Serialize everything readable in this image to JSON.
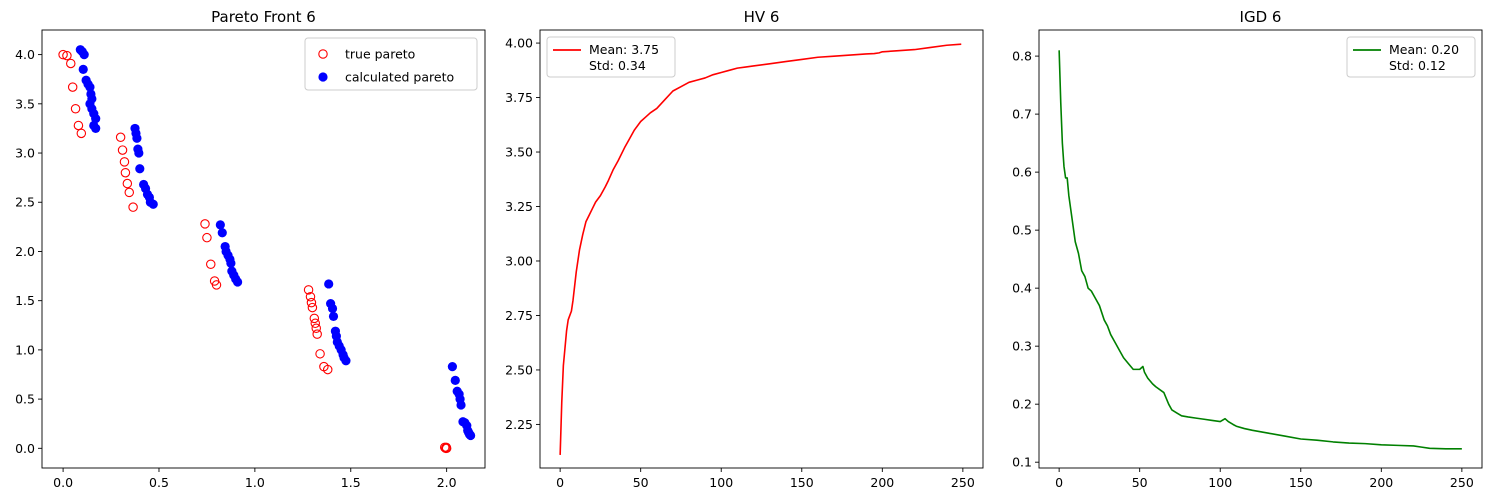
{
  "figure": {
    "colors": {
      "true_pareto": "#ff0000",
      "calculated_pareto": "#0000ff",
      "hv_line": "#ff0000",
      "igd_line": "#008000"
    }
  },
  "chart_data": [
    {
      "type": "scatter",
      "title": "Pareto Front 6",
      "xlabel": "",
      "ylabel": "",
      "xlim": [
        -0.11,
        2.2
      ],
      "ylim": [
        -0.2,
        4.25
      ],
      "xticks": [
        0.0,
        0.5,
        1.0,
        1.5,
        2.0
      ],
      "xtick_labels": [
        "0.0",
        "0.5",
        "1.0",
        "1.5",
        "2.0"
      ],
      "yticks": [
        0.0,
        0.5,
        1.0,
        1.5,
        2.0,
        2.5,
        3.0,
        3.5,
        4.0
      ],
      "ytick_labels": [
        "0.0",
        "0.5",
        "1.0",
        "1.5",
        "2.0",
        "2.5",
        "3.0",
        "3.5",
        "4.0"
      ],
      "legend_position": "top-right",
      "series": [
        {
          "name": "true pareto",
          "marker": "hollow-circle",
          "color": "#ff0000",
          "points": [
            [
              0.0,
              4.0
            ],
            [
              0.02,
              3.99
            ],
            [
              0.04,
              3.91
            ],
            [
              0.05,
              3.67
            ],
            [
              0.065,
              3.45
            ],
            [
              0.08,
              3.28
            ],
            [
              0.095,
              3.2
            ],
            [
              0.3,
              3.16
            ],
            [
              0.31,
              3.03
            ],
            [
              0.32,
              2.91
            ],
            [
              0.325,
              2.8
            ],
            [
              0.335,
              2.69
            ],
            [
              0.345,
              2.6
            ],
            [
              0.365,
              2.45
            ],
            [
              0.74,
              2.28
            ],
            [
              0.75,
              2.14
            ],
            [
              0.77,
              1.87
            ],
            [
              0.79,
              1.7
            ],
            [
              0.8,
              1.66
            ],
            [
              1.28,
              1.61
            ],
            [
              1.29,
              1.54
            ],
            [
              1.295,
              1.48
            ],
            [
              1.3,
              1.43
            ],
            [
              1.31,
              1.32
            ],
            [
              1.315,
              1.27
            ],
            [
              1.32,
              1.22
            ],
            [
              1.325,
              1.16
            ],
            [
              1.34,
              0.96
            ],
            [
              1.36,
              0.83
            ],
            [
              1.38,
              0.8
            ],
            [
              1.99,
              0.01
            ],
            [
              1.995,
              0.0
            ],
            [
              2.0,
              0.0
            ],
            [
              1.998,
              0.01
            ]
          ]
        },
        {
          "name": "calculated pareto",
          "marker": "filled-circle",
          "color": "#0000ff",
          "points": [
            [
              0.09,
              4.05
            ],
            [
              0.1,
              4.03
            ],
            [
              0.11,
              4.0
            ],
            [
              0.105,
              3.85
            ],
            [
              0.12,
              3.74
            ],
            [
              0.13,
              3.7
            ],
            [
              0.14,
              3.67
            ],
            [
              0.145,
              3.6
            ],
            [
              0.15,
              3.55
            ],
            [
              0.14,
              3.5
            ],
            [
              0.15,
              3.45
            ],
            [
              0.16,
              3.4
            ],
            [
              0.17,
              3.35
            ],
            [
              0.16,
              3.28
            ],
            [
              0.17,
              3.25
            ],
            [
              0.375,
              3.25
            ],
            [
              0.38,
              3.2
            ],
            [
              0.385,
              3.15
            ],
            [
              0.39,
              3.04
            ],
            [
              0.395,
              3.0
            ],
            [
              0.4,
              2.84
            ],
            [
              0.42,
              2.68
            ],
            [
              0.43,
              2.64
            ],
            [
              0.44,
              2.58
            ],
            [
              0.45,
              2.55
            ],
            [
              0.455,
              2.5
            ],
            [
              0.47,
              2.48
            ],
            [
              0.82,
              2.27
            ],
            [
              0.83,
              2.19
            ],
            [
              0.845,
              2.05
            ],
            [
              0.85,
              2.0
            ],
            [
              0.86,
              1.96
            ],
            [
              0.87,
              1.92
            ],
            [
              0.875,
              1.88
            ],
            [
              0.88,
              1.8
            ],
            [
              0.89,
              1.76
            ],
            [
              0.9,
              1.72
            ],
            [
              0.91,
              1.69
            ],
            [
              1.385,
              1.67
            ],
            [
              1.395,
              1.47
            ],
            [
              1.405,
              1.42
            ],
            [
              1.41,
              1.34
            ],
            [
              1.42,
              1.19
            ],
            [
              1.425,
              1.14
            ],
            [
              1.43,
              1.08
            ],
            [
              1.44,
              1.04
            ],
            [
              1.45,
              1.0
            ],
            [
              1.46,
              0.95
            ],
            [
              1.465,
              0.92
            ],
            [
              1.475,
              0.89
            ],
            [
              2.03,
              0.83
            ],
            [
              2.045,
              0.69
            ],
            [
              2.055,
              0.58
            ],
            [
              2.065,
              0.55
            ],
            [
              2.07,
              0.5
            ],
            [
              2.075,
              0.44
            ],
            [
              2.085,
              0.27
            ],
            [
              2.095,
              0.26
            ],
            [
              2.105,
              0.23
            ],
            [
              2.11,
              0.18
            ],
            [
              2.115,
              0.16
            ],
            [
              2.12,
              0.14
            ],
            [
              2.125,
              0.13
            ]
          ]
        }
      ]
    },
    {
      "type": "line",
      "title": "HV 6",
      "xlabel": "",
      "ylabel": "",
      "xlim": [
        -12.5,
        262.5
      ],
      "ylim": [
        2.05,
        4.06
      ],
      "xticks": [
        0,
        50,
        100,
        150,
        200,
        250
      ],
      "xtick_labels": [
        "0",
        "50",
        "100",
        "150",
        "200",
        "250"
      ],
      "yticks": [
        2.25,
        2.5,
        2.75,
        3.0,
        3.25,
        3.5,
        3.75,
        4.0
      ],
      "ytick_labels": [
        "2.25",
        "2.50",
        "2.75",
        "3.00",
        "3.25",
        "3.50",
        "3.75",
        "4.00"
      ],
      "legend_position": "top-left",
      "series": [
        {
          "name": "Mean: 3.75\nStd: 0.34",
          "legend_lines": [
            "Mean: 3.75",
            "Std: 0.34"
          ],
          "color": "#ff0000",
          "x": [
            0,
            1,
            2,
            3,
            4,
            5,
            6,
            7,
            8,
            10,
            12,
            14,
            16,
            18,
            20,
            22,
            25,
            28,
            30,
            33,
            36,
            40,
            43,
            46,
            50,
            53,
            56,
            60,
            65,
            70,
            75,
            80,
            85,
            90,
            95,
            100,
            105,
            110,
            115,
            120,
            130,
            140,
            150,
            160,
            170,
            180,
            190,
            195,
            198,
            200,
            210,
            220,
            230,
            240,
            249
          ],
          "y": [
            2.11,
            2.35,
            2.52,
            2.6,
            2.68,
            2.73,
            2.75,
            2.77,
            2.82,
            2.95,
            3.05,
            3.12,
            3.18,
            3.21,
            3.24,
            3.27,
            3.3,
            3.34,
            3.37,
            3.42,
            3.46,
            3.52,
            3.56,
            3.6,
            3.64,
            3.66,
            3.68,
            3.7,
            3.74,
            3.78,
            3.8,
            3.82,
            3.83,
            3.84,
            3.855,
            3.865,
            3.875,
            3.885,
            3.89,
            3.895,
            3.905,
            3.915,
            3.925,
            3.935,
            3.94,
            3.945,
            3.95,
            3.952,
            3.955,
            3.96,
            3.965,
            3.97,
            3.98,
            3.99,
            3.995
          ]
        }
      ]
    },
    {
      "type": "line",
      "title": "IGD 6",
      "xlabel": "",
      "ylabel": "",
      "xlim": [
        -12.5,
        262.5
      ],
      "ylim": [
        0.09,
        0.845
      ],
      "xticks": [
        0,
        50,
        100,
        150,
        200,
        250
      ],
      "xtick_labels": [
        "0",
        "50",
        "100",
        "150",
        "200",
        "250"
      ],
      "yticks": [
        0.1,
        0.2,
        0.3,
        0.4,
        0.5,
        0.6,
        0.7,
        0.8
      ],
      "ytick_labels": [
        "0.1",
        "0.2",
        "0.3",
        "0.4",
        "0.5",
        "0.6",
        "0.7",
        "0.8"
      ],
      "legend_position": "top-right",
      "series": [
        {
          "name": "Mean: 0.20\nStd: 0.12",
          "legend_lines": [
            "Mean: 0.20",
            "Std: 0.12"
          ],
          "color": "#008000",
          "x": [
            0,
            1,
            2,
            3,
            4,
            5,
            6,
            7,
            8,
            9,
            10,
            12,
            14,
            16,
            18,
            20,
            22,
            25,
            28,
            30,
            32,
            35,
            38,
            40,
            43,
            46,
            50,
            52,
            53,
            55,
            58,
            60,
            65,
            68,
            70,
            73,
            76,
            80,
            85,
            90,
            95,
            100,
            103,
            105,
            108,
            110,
            115,
            120,
            130,
            140,
            150,
            160,
            170,
            180,
            190,
            200,
            210,
            220,
            225,
            230,
            240,
            250
          ],
          "y": [
            0.81,
            0.72,
            0.65,
            0.61,
            0.59,
            0.59,
            0.56,
            0.54,
            0.52,
            0.5,
            0.48,
            0.46,
            0.43,
            0.42,
            0.4,
            0.395,
            0.385,
            0.37,
            0.345,
            0.335,
            0.32,
            0.305,
            0.29,
            0.28,
            0.27,
            0.26,
            0.26,
            0.265,
            0.255,
            0.245,
            0.235,
            0.23,
            0.22,
            0.2,
            0.19,
            0.185,
            0.18,
            0.178,
            0.176,
            0.174,
            0.172,
            0.17,
            0.175,
            0.17,
            0.165,
            0.162,
            0.158,
            0.155,
            0.15,
            0.145,
            0.14,
            0.138,
            0.135,
            0.133,
            0.132,
            0.13,
            0.129,
            0.128,
            0.126,
            0.124,
            0.123,
            0.123
          ]
        }
      ]
    }
  ]
}
